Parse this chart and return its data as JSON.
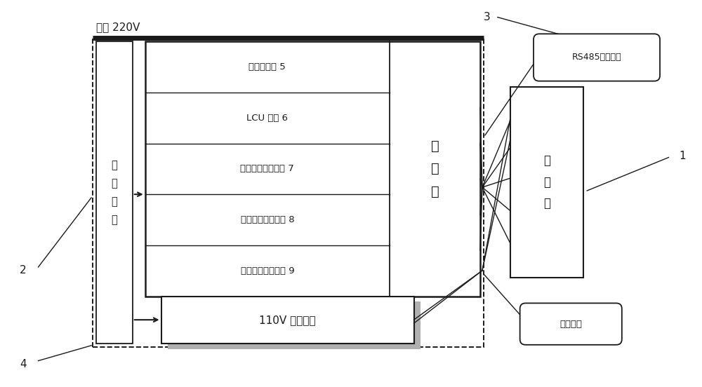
{
  "bg_color": "#ffffff",
  "ac_label": "交流 220V",
  "label_1": "1",
  "label_2": "2",
  "label_3": "3",
  "label_4": "4",
  "test_device_label": "测\n试\n装\n置",
  "computer_label": "计\n算\n机",
  "display_label": "显\n示\n屏",
  "rs485_label": "RS485通信线缆",
  "power_cable_label": "电源线缆",
  "power_supply_label": "110V 直流电源",
  "modules": [
    "电子柜模拟 5",
    "LCU 模拟 6",
    "车载信息装置模拟 7",
    "故障隔离单元模拟 8",
    "列车供电装置模拟 9"
  ],
  "black": "#1a1a1a",
  "gray_fill": "#b0b0b0",
  "white": "#ffffff"
}
